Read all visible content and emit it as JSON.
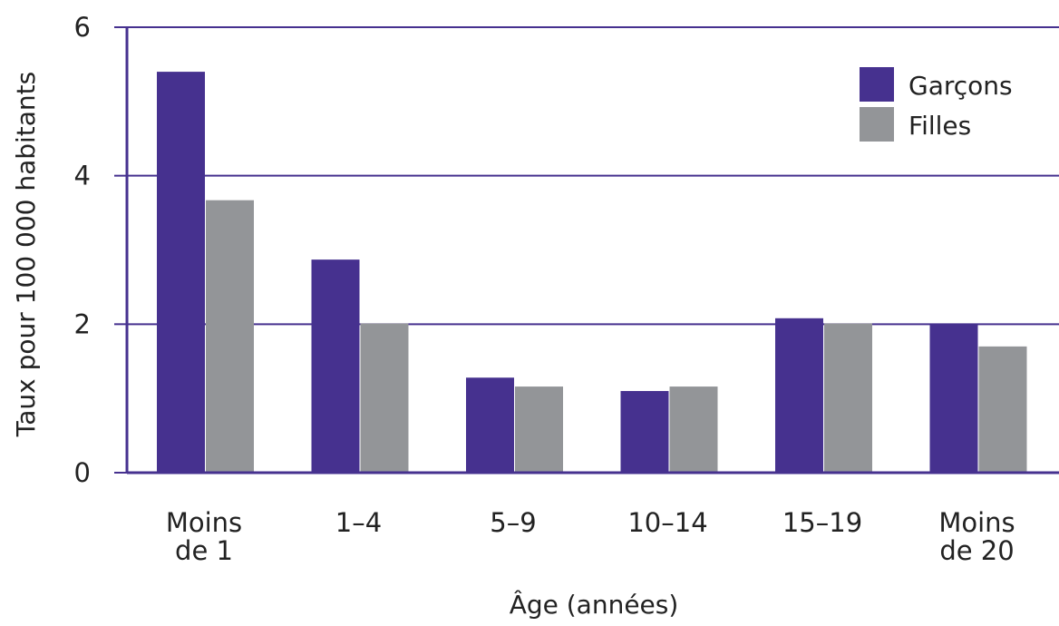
{
  "chart_data": {
    "type": "bar",
    "title": "",
    "xlabel": "Âge (années)",
    "ylabel": "Taux pour 100 000 habitants",
    "categories": [
      [
        "Moins",
        "de 1"
      ],
      [
        "1–4"
      ],
      [
        "5–9"
      ],
      [
        "10–14"
      ],
      [
        "15–19"
      ],
      [
        "Moins",
        "de 20"
      ]
    ],
    "series": [
      {
        "name": "Garçons",
        "color": "#46318f",
        "values": [
          5.4,
          2.87,
          1.28,
          1.1,
          2.08,
          2.01
        ]
      },
      {
        "name": "Filles",
        "color": "#939598",
        "values": [
          3.67,
          2.01,
          1.16,
          1.16,
          2.01,
          1.7
        ]
      }
    ],
    "ylim": [
      0,
      6
    ],
    "yticks": [
      0,
      2,
      4,
      6
    ],
    "grid": true,
    "gridColor": "#46318f",
    "legend_position": "top-right"
  }
}
